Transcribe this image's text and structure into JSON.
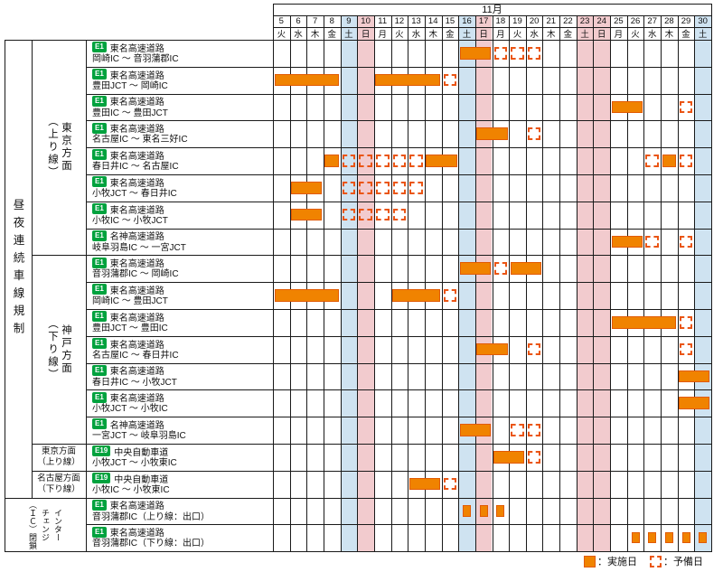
{
  "chart_data": {
    "type": "gantt",
    "month": "11月",
    "days": [
      {
        "date": 5,
        "dow": "火",
        "shade": ""
      },
      {
        "date": 6,
        "dow": "水",
        "shade": ""
      },
      {
        "date": 7,
        "dow": "木",
        "shade": ""
      },
      {
        "date": 8,
        "dow": "金",
        "shade": ""
      },
      {
        "date": 9,
        "dow": "土",
        "shade": "sat"
      },
      {
        "date": 10,
        "dow": "日",
        "shade": "sun"
      },
      {
        "date": 11,
        "dow": "月",
        "shade": ""
      },
      {
        "date": 12,
        "dow": "火",
        "shade": ""
      },
      {
        "date": 13,
        "dow": "水",
        "shade": ""
      },
      {
        "date": 14,
        "dow": "木",
        "shade": ""
      },
      {
        "date": 15,
        "dow": "金",
        "shade": ""
      },
      {
        "date": 16,
        "dow": "土",
        "shade": "sat"
      },
      {
        "date": 17,
        "dow": "日",
        "shade": "sun"
      },
      {
        "date": 18,
        "dow": "月",
        "shade": ""
      },
      {
        "date": 19,
        "dow": "火",
        "shade": ""
      },
      {
        "date": 20,
        "dow": "水",
        "shade": ""
      },
      {
        "date": 21,
        "dow": "木",
        "shade": ""
      },
      {
        "date": 22,
        "dow": "金",
        "shade": ""
      },
      {
        "date": 23,
        "dow": "土",
        "shade": "sun"
      },
      {
        "date": 24,
        "dow": "日",
        "shade": "sun"
      },
      {
        "date": 25,
        "dow": "月",
        "shade": ""
      },
      {
        "date": 26,
        "dow": "火",
        "shade": ""
      },
      {
        "date": 27,
        "dow": "水",
        "shade": ""
      },
      {
        "date": 28,
        "dow": "木",
        "shade": ""
      },
      {
        "date": 29,
        "dow": "金",
        "shade": ""
      },
      {
        "date": 30,
        "dow": "土",
        "shade": "sat"
      }
    ],
    "left_labels": {
      "main": "昼夜連続車線規制",
      "ic": "インターチェンジ（ＩＣ）閉鎖",
      "ic_lines": [
        "インター",
        "チェンジ",
        "（ＩＣ）閉鎖"
      ]
    },
    "groups": [
      {
        "name": "東京方面",
        "sub": "（上り線）",
        "vertical": true,
        "row_start": 0,
        "row_end": 8
      },
      {
        "name": "神戸方面",
        "sub": "（下り線）",
        "vertical": true,
        "row_start": 8,
        "row_end": 15
      },
      {
        "name": "東京方面",
        "sub": "（上り線）",
        "vertical": false,
        "row_start": 15,
        "row_end": 16
      },
      {
        "name": "名古屋方面",
        "sub": "（下り線）",
        "vertical": false,
        "row_start": 16,
        "row_end": 17
      }
    ],
    "rows": [
      {
        "badge": "E1",
        "road": "東名高速道路",
        "section": "岡崎IC ～ 音羽蒲郡IC",
        "bars": [
          {
            "kind": "work",
            "from": 16,
            "to": 17
          },
          {
            "kind": "reserve",
            "from": 18,
            "to": 18
          },
          {
            "kind": "reserve",
            "from": 19,
            "to": 19
          },
          {
            "kind": "reserve",
            "from": 20,
            "to": 20
          }
        ]
      },
      {
        "badge": "E1",
        "road": "東名高速道路",
        "section": "豊田JCT ～ 岡崎IC",
        "bars": [
          {
            "kind": "work",
            "from": 5,
            "to": 8
          },
          {
            "kind": "work",
            "from": 11,
            "to": 14
          },
          {
            "kind": "reserve",
            "from": 15,
            "to": 15
          }
        ]
      },
      {
        "badge": "E1",
        "road": "東名高速道路",
        "section": "豊田IC ～ 豊田JCT",
        "bars": [
          {
            "kind": "work",
            "from": 25,
            "to": 26
          },
          {
            "kind": "reserve",
            "from": 29,
            "to": 29
          }
        ]
      },
      {
        "badge": "E1",
        "road": "東名高速道路",
        "section": "名古屋IC ～ 東名三好IC",
        "bars": [
          {
            "kind": "work",
            "from": 17,
            "to": 18
          },
          {
            "kind": "reserve",
            "from": 20,
            "to": 20
          }
        ]
      },
      {
        "badge": "E1",
        "road": "東名高速道路",
        "section": "春日井IC ～ 名古屋IC",
        "bars": [
          {
            "kind": "work",
            "from": 8,
            "to": 8
          },
          {
            "kind": "reserve",
            "from": 9,
            "to": 9
          },
          {
            "kind": "reserve",
            "from": 10,
            "to": 10
          },
          {
            "kind": "reserve",
            "from": 11,
            "to": 11
          },
          {
            "kind": "reserve",
            "from": 12,
            "to": 12
          },
          {
            "kind": "reserve",
            "from": 13,
            "to": 13
          },
          {
            "kind": "work",
            "from": 14,
            "to": 15
          },
          {
            "kind": "reserve",
            "from": 27,
            "to": 27
          },
          {
            "kind": "work",
            "from": 28,
            "to": 28
          },
          {
            "kind": "reserve",
            "from": 29,
            "to": 29
          }
        ]
      },
      {
        "badge": "E1",
        "road": "東名高速道路",
        "section": "小牧JCT ～ 春日井IC",
        "bars": [
          {
            "kind": "work",
            "from": 6,
            "to": 7
          },
          {
            "kind": "reserve",
            "from": 9,
            "to": 9
          },
          {
            "kind": "reserve",
            "from": 10,
            "to": 10
          },
          {
            "kind": "reserve",
            "from": 11,
            "to": 11
          },
          {
            "kind": "reserve",
            "from": 12,
            "to": 12
          },
          {
            "kind": "reserve",
            "from": 13,
            "to": 13
          }
        ]
      },
      {
        "badge": "E1",
        "road": "東名高速道路",
        "section": "小牧IC ～ 小牧JCT",
        "bars": [
          {
            "kind": "work",
            "from": 6,
            "to": 7
          },
          {
            "kind": "reserve",
            "from": 9,
            "to": 9
          },
          {
            "kind": "reserve",
            "from": 10,
            "to": 10
          },
          {
            "kind": "reserve",
            "from": 11,
            "to": 11
          },
          {
            "kind": "reserve",
            "from": 12,
            "to": 12
          }
        ]
      },
      {
        "badge": "E1",
        "road": "名神高速道路",
        "section": "岐阜羽島IC ～ 一宮JCT",
        "bars": [
          {
            "kind": "work",
            "from": 25,
            "to": 26
          },
          {
            "kind": "reserve",
            "from": 27,
            "to": 27
          },
          {
            "kind": "reserve",
            "from": 29,
            "to": 29
          }
        ]
      },
      {
        "badge": "E1",
        "road": "東名高速道路",
        "section": "音羽蒲郡IC ～ 岡崎IC",
        "bars": [
          {
            "kind": "work",
            "from": 16,
            "to": 17
          },
          {
            "kind": "reserve",
            "from": 18,
            "to": 18
          },
          {
            "kind": "work",
            "from": 19,
            "to": 20
          }
        ]
      },
      {
        "badge": "E1",
        "road": "東名高速道路",
        "section": "岡崎IC ～ 豊田JCT",
        "bars": [
          {
            "kind": "work",
            "from": 5,
            "to": 8
          },
          {
            "kind": "work",
            "from": 12,
            "to": 14
          },
          {
            "kind": "reserve",
            "from": 15,
            "to": 15
          }
        ]
      },
      {
        "badge": "E1",
        "road": "東名高速道路",
        "section": "豊田JCT ～ 豊田IC",
        "bars": [
          {
            "kind": "work",
            "from": 25,
            "to": 28
          },
          {
            "kind": "reserve",
            "from": 29,
            "to": 29
          }
        ]
      },
      {
        "badge": "E1",
        "road": "東名高速道路",
        "section": "名古屋IC ～ 春日井IC",
        "bars": [
          {
            "kind": "work",
            "from": 17,
            "to": 18
          },
          {
            "kind": "reserve",
            "from": 20,
            "to": 20
          },
          {
            "kind": "reserve",
            "from": 29,
            "to": 29
          }
        ]
      },
      {
        "badge": "E1",
        "road": "東名高速道路",
        "section": "春日井IC ～ 小牧JCT",
        "bars": [
          {
            "kind": "work",
            "from": 29,
            "to": 30
          }
        ]
      },
      {
        "badge": "E1",
        "road": "東名高速道路",
        "section": "小牧JCT ～ 小牧IC",
        "bars": [
          {
            "kind": "work",
            "from": 29,
            "to": 30
          }
        ]
      },
      {
        "badge": "E1",
        "road": "名神高速道路",
        "section": "一宮JCT ～ 岐阜羽島IC",
        "bars": [
          {
            "kind": "work",
            "from": 16,
            "to": 17
          },
          {
            "kind": "reserve",
            "from": 19,
            "to": 19
          },
          {
            "kind": "reserve",
            "from": 20,
            "to": 20
          }
        ]
      },
      {
        "badge": "E19",
        "road": "中央自動車道",
        "section": "小牧JCT ～ 小牧東IC",
        "bars": [
          {
            "kind": "work",
            "from": 18,
            "to": 19
          },
          {
            "kind": "reserve",
            "from": 20,
            "to": 20
          }
        ]
      },
      {
        "badge": "E19",
        "road": "中央自動車道",
        "section": "小牧IC ～ 小牧東IC",
        "bars": [
          {
            "kind": "work",
            "from": 13,
            "to": 14
          },
          {
            "kind": "reserve",
            "from": 15,
            "to": 15
          }
        ]
      },
      {
        "badge": "E1",
        "road": "東名高速道路",
        "section": "音羽蒲郡IC（上り線：出口）",
        "bars": [
          {
            "kind": "mark",
            "from": 16,
            "to": 16
          },
          {
            "kind": "mark",
            "from": 17,
            "to": 17
          },
          {
            "kind": "mark",
            "from": 18,
            "to": 18
          }
        ]
      },
      {
        "badge": "E1",
        "road": "東名高速道路",
        "section": "音羽蒲郡IC（下り線：出口）",
        "bars": [
          {
            "kind": "mark",
            "from": 26,
            "to": 26
          },
          {
            "kind": "mark",
            "from": 27,
            "to": 27
          },
          {
            "kind": "mark",
            "from": 28,
            "to": 28
          },
          {
            "kind": "mark",
            "from": 29,
            "to": 29
          },
          {
            "kind": "mark",
            "from": 30,
            "to": 30
          }
        ]
      }
    ],
    "legend": {
      "work": "：実施日",
      "reserve": "：予備日"
    },
    "colors": {
      "work_bar": "#f08300",
      "work_bar_border": "#e25a00",
      "reserve_border": "#ea5514",
      "saturday": "#cfe3f1",
      "sunday_holiday": "#f2cbce",
      "badge": "#00a23e",
      "grid": "#1a1a1a"
    }
  }
}
